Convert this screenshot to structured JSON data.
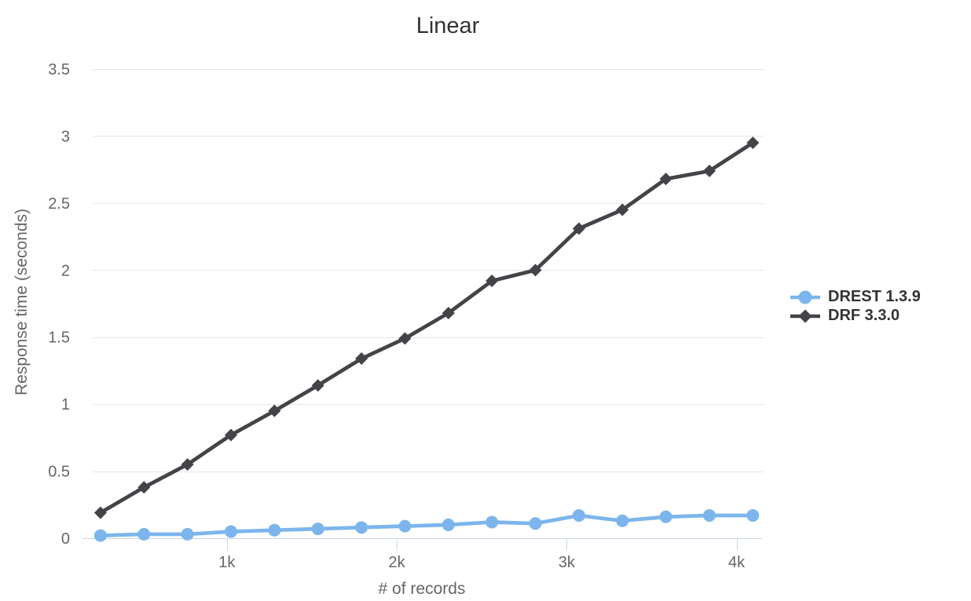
{
  "chart_data": {
    "type": "line",
    "title": "Linear",
    "xlabel": "# of records",
    "ylabel": "Response time (seconds)",
    "x": [
      256,
      512,
      768,
      1024,
      1280,
      1536,
      1792,
      2048,
      2304,
      2560,
      2816,
      3072,
      3328,
      3584,
      3840,
      4096
    ],
    "series": [
      {
        "name": "DREST 1.3.9",
        "color": "#7cb5ec",
        "marker": "circle",
        "values": [
          0.02,
          0.03,
          0.03,
          0.05,
          0.06,
          0.07,
          0.08,
          0.09,
          0.1,
          0.12,
          0.11,
          0.17,
          0.13,
          0.16,
          0.17,
          0.17
        ]
      },
      {
        "name": "DRF 3.3.0",
        "color": "#434348",
        "marker": "diamond",
        "values": [
          0.19,
          0.38,
          0.55,
          0.77,
          0.95,
          1.14,
          1.34,
          1.49,
          1.68,
          1.92,
          2.0,
          2.31,
          2.45,
          2.68,
          2.74,
          2.95
        ]
      }
    ],
    "xticks": [
      {
        "value": 1000,
        "label": "1k"
      },
      {
        "value": 2000,
        "label": "2k"
      },
      {
        "value": 3000,
        "label": "3k"
      },
      {
        "value": 4000,
        "label": "4k"
      }
    ],
    "yticks": [
      "0",
      "0.5",
      "1",
      "1.5",
      "2",
      "2.5",
      "3",
      "3.5"
    ],
    "ytick_values": [
      0,
      0.5,
      1,
      1.5,
      2,
      2.5,
      3,
      3.5
    ],
    "xlim": [
      150,
      4150
    ],
    "ylim": [
      0,
      3.5
    ],
    "grid": true,
    "legend_position": "right-middle",
    "colors": {
      "grid_line": "#e6e6e6",
      "axis_line": "#ccd6eb",
      "title_text": "#333333",
      "tick_text": "#666666",
      "axis_title_text": "#666666",
      "legend_text": "#333333",
      "background": "#ffffff"
    }
  }
}
